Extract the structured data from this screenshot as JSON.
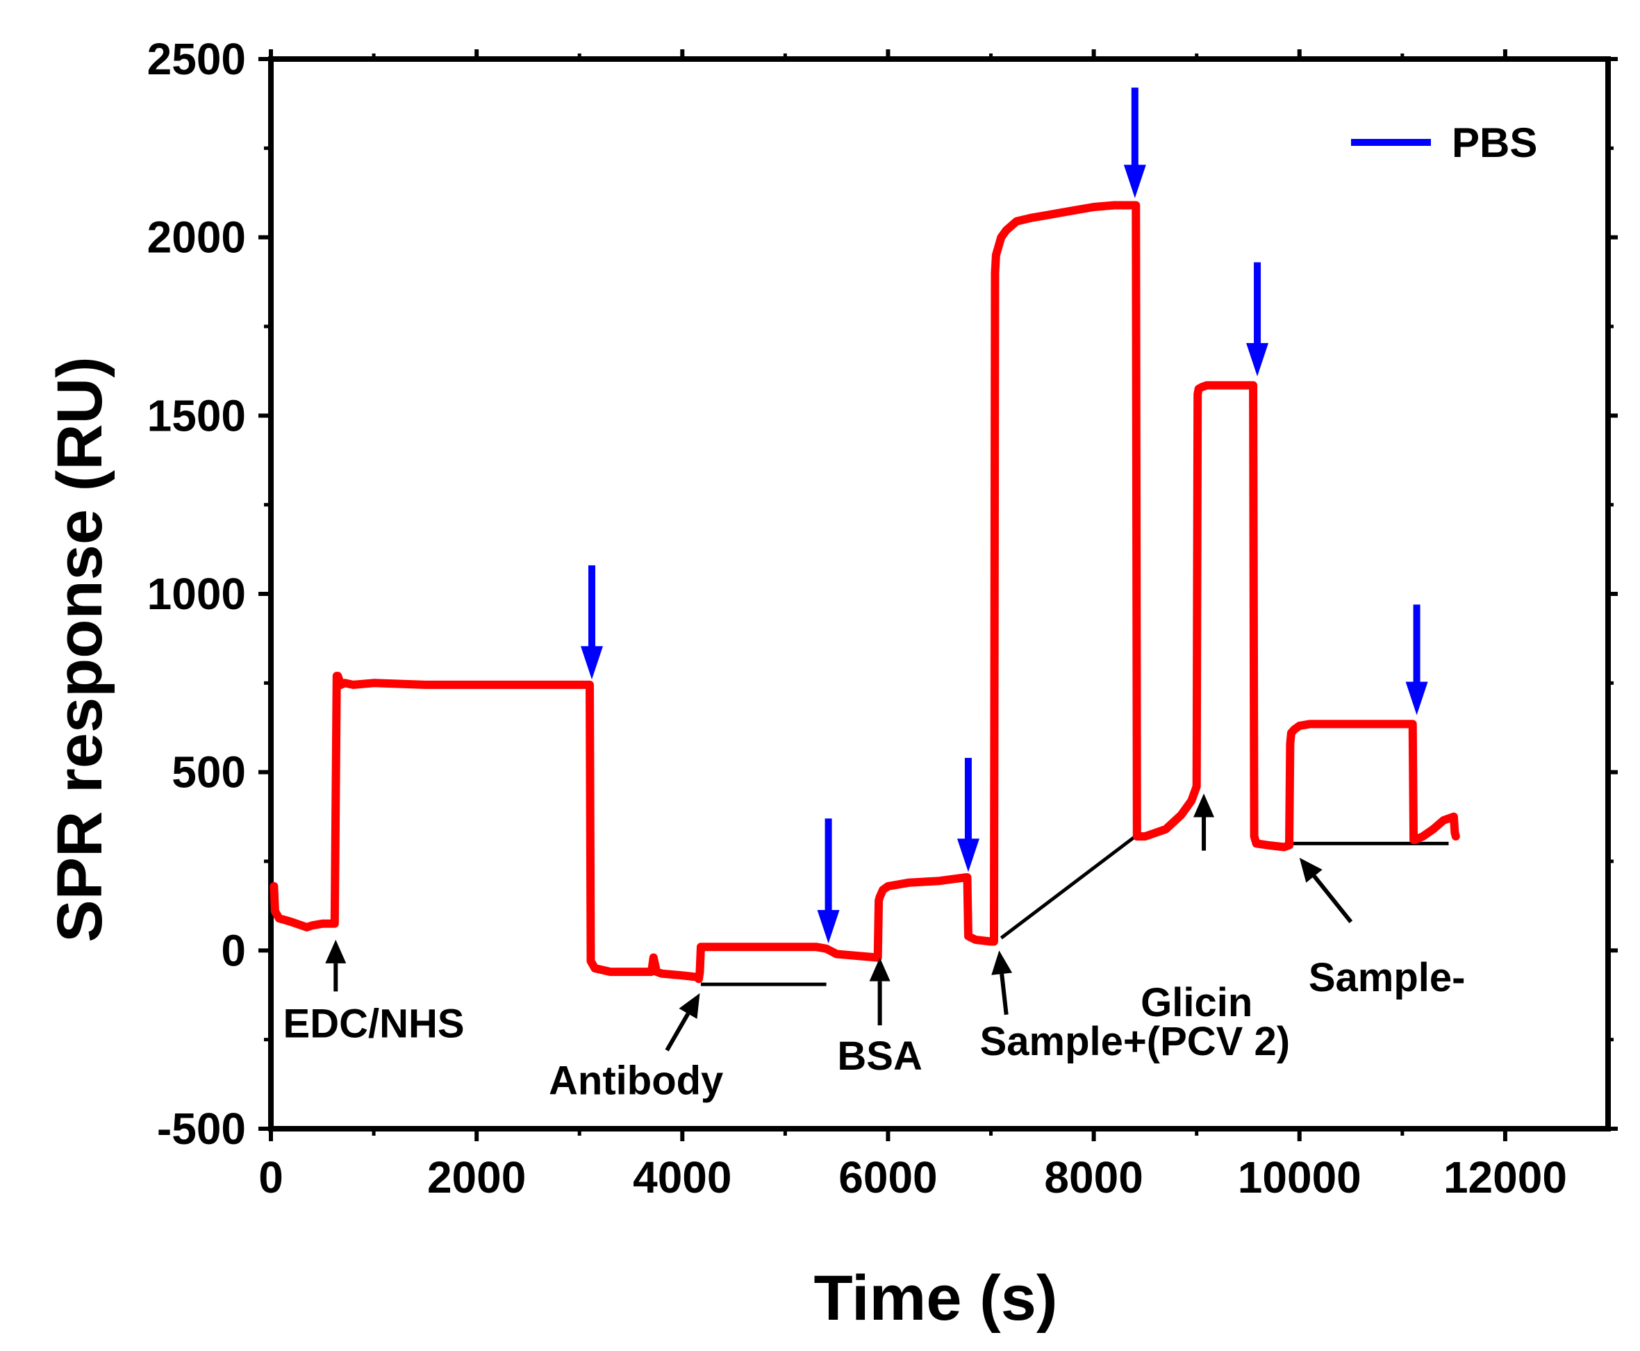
{
  "chart_data": {
    "type": "line",
    "title": "",
    "xlabel": "Time (s)",
    "ylabel": "SPR response (RU)",
    "xlim": [
      0,
      13000
    ],
    "ylim": [
      -500,
      2500
    ],
    "xticks": [
      0,
      2000,
      4000,
      6000,
      8000,
      10000,
      12000
    ],
    "yticks": [
      -500,
      0,
      500,
      1000,
      1500,
      2000,
      2500
    ],
    "xtick_labels": [
      "0",
      "2000",
      "4000",
      "6000",
      "8000",
      "10000",
      "12000"
    ],
    "ytick_labels": [
      "-500",
      "0",
      "500",
      "1000",
      "1500",
      "2000",
      "2500"
    ],
    "grid": false,
    "series": [
      {
        "name": "SPR response",
        "color": "#ff0000",
        "x": [
          30,
          40,
          80,
          200,
          350,
          400,
          500,
          620,
          640,
          650,
          680,
          720,
          800,
          1000,
          1500,
          2000,
          2500,
          3000,
          3100,
          3110,
          3150,
          3300,
          3500,
          3700,
          3720,
          3750,
          3800,
          4000,
          4150,
          4160,
          4170,
          4180,
          4200,
          4500,
          5000,
          5300,
          5400,
          5500,
          5900,
          5910,
          5920,
          5950,
          6000,
          6200,
          6500,
          6760,
          6770,
          6780,
          6850,
          7000,
          7030,
          7040,
          7050,
          7100,
          7150,
          7250,
          7400,
          7500,
          7700,
          8000,
          8200,
          8400,
          8410,
          8420,
          8500,
          8700,
          8850,
          8950,
          9000,
          9010,
          9020,
          9050,
          9100,
          9200,
          9300,
          9550,
          9560,
          9580,
          9700,
          9850,
          9900,
          9910,
          9920,
          9950,
          10000,
          10100,
          10200,
          10500,
          11000,
          11100,
          11110,
          11120,
          11200,
          11300,
          11400,
          11500,
          11510,
          11520
        ],
        "y": [
          180,
          110,
          90,
          80,
          65,
          70,
          75,
          75,
          770,
          770,
          745,
          750,
          745,
          750,
          745,
          745,
          745,
          745,
          745,
          -30,
          -50,
          -60,
          -60,
          -60,
          -20,
          -60,
          -65,
          -70,
          -75,
          -80,
          -60,
          10,
          10,
          10,
          10,
          10,
          5,
          -10,
          -20,
          140,
          150,
          170,
          180,
          190,
          195,
          205,
          205,
          40,
          30,
          25,
          25,
          1900,
          1950,
          2000,
          2020,
          2045,
          2055,
          2060,
          2070,
          2085,
          2090,
          2090,
          2090,
          320,
          320,
          340,
          380,
          420,
          460,
          1560,
          1575,
          1580,
          1585,
          1585,
          1585,
          1585,
          320,
          300,
          295,
          290,
          295,
          580,
          610,
          620,
          630,
          635,
          635,
          635,
          635,
          635,
          310,
          310,
          320,
          340,
          365,
          375,
          330,
          320
        ]
      },
      {
        "name": "PBS",
        "color": "#0000ff",
        "type": "injection-arrows",
        "x": [
          3120,
          5420,
          6780,
          8400,
          9590,
          11140
        ],
        "y_top": [
          1080,
          370,
          540,
          2420,
          1930,
          970
        ],
        "y_tip": [
          760,
          20,
          220,
          2110,
          1610,
          660
        ]
      }
    ],
    "annotations": [
      {
        "text": "EDC/NHS",
        "x": 1000,
        "y": -205,
        "arrow_tail": [
          630,
          -115
        ],
        "arrow_head": [
          630,
          30
        ],
        "arrow_type": "filled"
      },
      {
        "text": "Antibody",
        "x": 3550,
        "y": -365,
        "arrow_tail": [
          3850,
          -280
        ],
        "arrow_head": [
          4170,
          -120
        ],
        "arrow_type": "filled"
      },
      {
        "text": "BSA",
        "x": 5920,
        "y": -295,
        "arrow_tail": [
          5920,
          -210
        ],
        "arrow_head": [
          5920,
          -20
        ],
        "arrow_type": "filled"
      },
      {
        "text": "Sample+(PCV 2)",
        "x": 8400,
        "y": -255,
        "arrow_tail": [
          7150,
          -180
        ],
        "arrow_head": [
          7080,
          0
        ],
        "arrow_type": "filled"
      },
      {
        "text": "Glicin",
        "x": 9000,
        "y": -145,
        "arrow_tail": [
          9070,
          280
        ],
        "arrow_head": [
          9070,
          440
        ],
        "arrow_type": "filled"
      },
      {
        "text": "Sample-",
        "x": 10850,
        "y": -75,
        "arrow_tail": [
          10500,
          80
        ],
        "arrow_head": [
          10000,
          260
        ],
        "arrow_type": "filled"
      }
    ],
    "reference_lines": [
      {
        "from": [
          4180,
          -95
        ],
        "to": [
          5400,
          -95
        ]
      },
      {
        "from": [
          7100,
          35
        ],
        "to": [
          8450,
          330
        ]
      },
      {
        "from": [
          9900,
          300
        ],
        "to": [
          11450,
          300
        ]
      }
    ],
    "legend": {
      "position": "top-right",
      "entries": [
        {
          "label": "PBS",
          "color": "#0000ff"
        }
      ]
    }
  }
}
